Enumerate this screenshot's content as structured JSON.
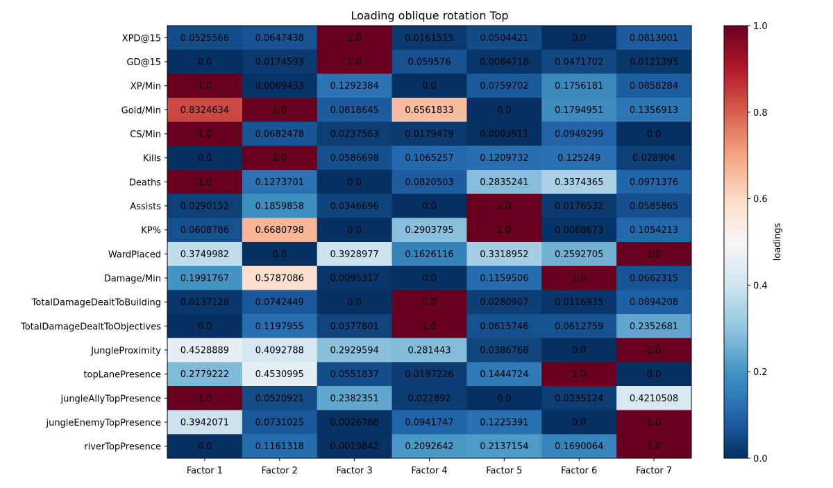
{
  "chart_data": {
    "type": "heatmap",
    "title": "Loading oblique rotation Top",
    "xlabel": "",
    "ylabel": "",
    "x": [
      "Factor 1",
      "Factor 2",
      "Factor 3",
      "Factor 4",
      "Factor 5",
      "Factor 6",
      "Factor 7"
    ],
    "y": [
      "XPD@15",
      "GD@15",
      "XP/Min",
      "Gold/Min",
      "CS/Min",
      "Kills",
      "Deaths",
      "Assists",
      "KP%",
      "WardPlaced",
      "Damage/Min",
      "TotalDamageDealtToBuilding",
      "TotalDamageDealtToObjectives",
      "JungleProximity",
      "topLanePresence",
      "jungleAllyTopPresence",
      "jungleEnemyTopPresence",
      "riverTopPresence"
    ],
    "values": [
      [
        "0.0525566",
        "0.0647438",
        "1.0",
        "0.0161515",
        "0.0504421",
        "0.0",
        "0.0813001"
      ],
      [
        "0.0",
        "0.0174593",
        "1.0",
        "0.059576",
        "0.0084718",
        "0.0471702",
        "0.0121395"
      ],
      [
        "1.0",
        "0.0069433",
        "0.1292384",
        "0.0",
        "0.0759702",
        "0.1756181",
        "0.0858284"
      ],
      [
        "0.8324634",
        "1.0",
        "0.0818645",
        "0.6561833",
        "0.0",
        "0.1794951",
        "0.1356913"
      ],
      [
        "1.0",
        "0.0682478",
        "0.0237563",
        "0.0179479",
        "0.0003911",
        "0.0949299",
        "0.0"
      ],
      [
        "0.0",
        "1.0",
        "0.0586698",
        "0.1065257",
        "0.1209732",
        "0.125249",
        "0.028904"
      ],
      [
        "1.0",
        "0.1273701",
        "0.0",
        "0.0820503",
        "0.2835241",
        "0.3374365",
        "0.0971376"
      ],
      [
        "0.0290152",
        "0.1859858",
        "0.0346696",
        "0.0",
        "1.0",
        "0.0176532",
        "0.0585865"
      ],
      [
        "0.0608786",
        "0.6680798",
        "0.0",
        "0.2903795",
        "1.0",
        "0.0068673",
        "0.1054213"
      ],
      [
        "0.3749982",
        "0.0",
        "0.3928977",
        "0.1626116",
        "0.3318952",
        "0.2592705",
        "1.0"
      ],
      [
        "0.1991767",
        "0.5787086",
        "0.0095317",
        "0.0",
        "0.1159506",
        "1.0",
        "0.0662315"
      ],
      [
        "0.0137128",
        "0.0742449",
        "0.0",
        "1.0",
        "0.0280907",
        "0.0116935",
        "0.0894208"
      ],
      [
        "0.0",
        "0.1197955",
        "0.0377801",
        "1.0",
        "0.0615746",
        "0.0612759",
        "0.2352681"
      ],
      [
        "0.4528889",
        "0.4092788",
        "0.2929594",
        "0.281443",
        "0.0386768",
        "0.0",
        "1.0"
      ],
      [
        "0.2779222",
        "0.4530995",
        "0.0551837",
        "0.0197226",
        "0.1444724",
        "1.0",
        "0.0"
      ],
      [
        "1.0",
        "0.0520921",
        "0.2382351",
        "0.022892",
        "0.0",
        "0.0235124",
        "0.4210508"
      ],
      [
        "0.3942071",
        "0.0731025",
        "0.0026788",
        "0.0941747",
        "0.1225391",
        "0.0",
        "1.0"
      ],
      [
        "0.0",
        "0.1161318",
        "0.0019842",
        "0.2092642",
        "0.2137154",
        "0.1690064",
        "1.0"
      ]
    ],
    "colormap": "RdBu_r",
    "vmin": 0.0,
    "vmax": 1.0,
    "colorbar": {
      "label": "loadings",
      "ticks": [
        "0.0",
        "0.2",
        "0.4",
        "0.6",
        "0.8",
        "1.0"
      ]
    },
    "grid": false,
    "legend": "colorbar-right"
  }
}
